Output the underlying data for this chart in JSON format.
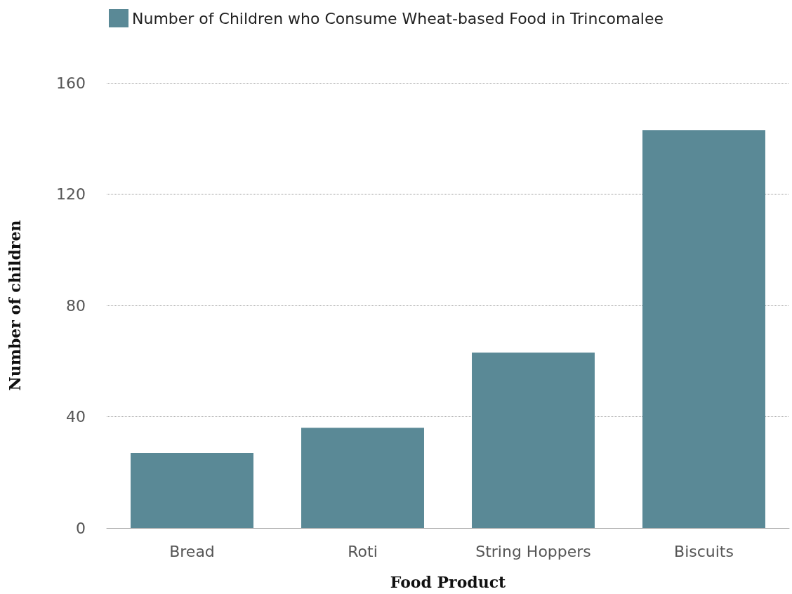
{
  "chart_data": {
    "type": "bar",
    "xlabel": "Food Product",
    "ylabel": "Number of children",
    "categories": [
      "Bread",
      "Roti",
      "String Hoppers",
      "Biscuits"
    ],
    "series": [
      {
        "name": "Number of Children who Consume Wheat-based Food in Trincomalee",
        "color": "#5a8996",
        "values": [
          27,
          36,
          63,
          143
        ]
      }
    ],
    "ylim": [
      0,
      160
    ],
    "yticks": [
      0,
      40,
      80,
      120,
      160
    ],
    "grid": "y",
    "legend": "top"
  }
}
